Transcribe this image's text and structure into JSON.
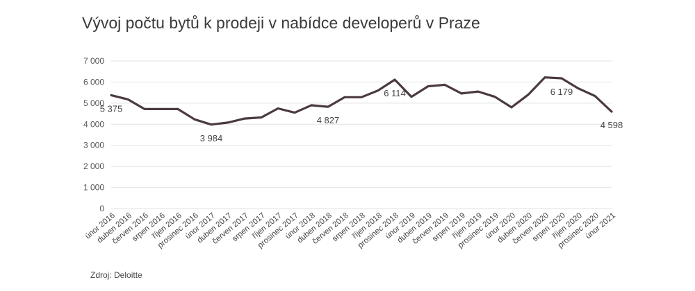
{
  "title": "Vývoj počtu bytů k prodeji v nabídce developerů v Praze",
  "source": "Zdroj: Deloitte",
  "chart_data": {
    "type": "line",
    "title": "Vývoj počtu bytů k prodeji v nabídce developerů v Praze",
    "xlabel": "",
    "ylabel": "",
    "ylim": [
      0,
      7000
    ],
    "yticks": [
      0,
      1000,
      2000,
      3000,
      4000,
      5000,
      6000,
      7000
    ],
    "ytick_labels": [
      "0",
      "1 000",
      "2 000",
      "3 000",
      "4 000",
      "5 000",
      "6 000",
      "7 000"
    ],
    "grid": true,
    "line_color": "#4a3a3e",
    "categories": [
      "únor 2016",
      "duben 2016",
      "červen 2016",
      "srpen 2016",
      "říjen 2016",
      "prosinec 2016",
      "únor 2017",
      "duben 2017",
      "červen 2017",
      "srpen 2017",
      "říjen 2017",
      "prosinec 2017",
      "únor 2018",
      "duben 2018",
      "červen 2018",
      "srpen 2018",
      "říjen 2018",
      "prosinec 2018",
      "únor 2019",
      "duben 2019",
      "červen 2019",
      "srpen 2019",
      "říjen 2019",
      "prosinec 2019",
      "únor 2020",
      "duben 2020",
      "červen 2020",
      "srpen 2020",
      "říjen 2020",
      "prosinec 2020",
      "únor 2021"
    ],
    "values": [
      5375,
      5180,
      4720,
      4720,
      4720,
      4230,
      3984,
      4080,
      4270,
      4320,
      4750,
      4550,
      4900,
      4827,
      5280,
      5280,
      5600,
      6114,
      5300,
      5800,
      5870,
      5460,
      5550,
      5300,
      4800,
      5400,
      6220,
      6179,
      5700,
      5340,
      4598
    ],
    "data_labels": [
      {
        "index": 0,
        "text": "5 375",
        "position": "below"
      },
      {
        "index": 6,
        "text": "3 984",
        "position": "below"
      },
      {
        "index": 13,
        "text": "4 827",
        "position": "below"
      },
      {
        "index": 17,
        "text": "6 114",
        "position": "below"
      },
      {
        "index": 27,
        "text": "6 179",
        "position": "below"
      },
      {
        "index": 30,
        "text": "4 598",
        "position": "below"
      }
    ]
  }
}
